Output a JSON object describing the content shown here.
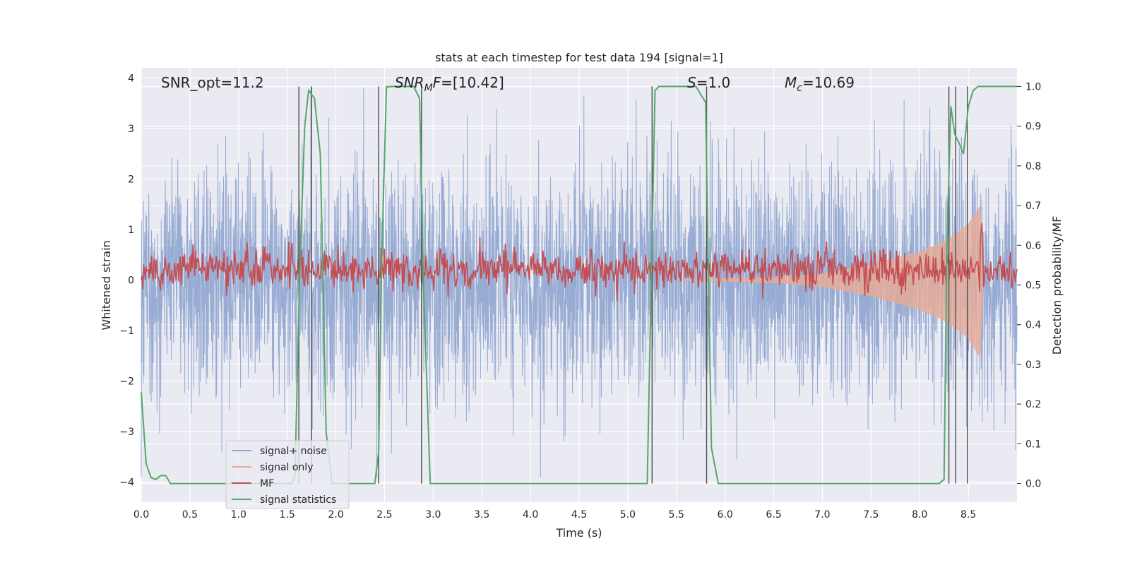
{
  "chart_data": {
    "type": "line",
    "title": "stats at each timestep for test data 194 [signal=1]",
    "xlabel": "Time (s)",
    "ylabel": "Whitened strain",
    "y2label": "Detection probability/MF",
    "xlim": [
      0.0,
      9.0
    ],
    "ylim": [
      -4.4,
      4.2
    ],
    "y2lim": [
      -0.047,
      1.047
    ],
    "x_ticks": [
      "0.0",
      "0.5",
      "1.0",
      "1.5",
      "2.0",
      "2.5",
      "3.0",
      "3.5",
      "4.0",
      "4.5",
      "5.0",
      "5.5",
      "6.0",
      "6.5",
      "7.0",
      "7.5",
      "8.0",
      "8.5"
    ],
    "y_ticks": [
      "−4",
      "−3",
      "−2",
      "−1",
      "0",
      "1",
      "2",
      "3",
      "4"
    ],
    "y2_ticks": [
      "0.0",
      "0.1",
      "0.2",
      "0.3",
      "0.4",
      "0.5",
      "0.6",
      "0.7",
      "0.8",
      "0.9",
      "1.0"
    ],
    "grid": true,
    "legend_position": "lower-left",
    "annotations": {
      "snr_opt": "SNR_opt=11.2",
      "snr_mf": "SNR",
      "snr_mf_sub": "M",
      "snr_mf_rest": "F=[10.42]",
      "s": "S",
      "s_rest": "=1.0",
      "mc": "M",
      "mc_sub": "c",
      "mc_rest": "=10.69"
    },
    "series": [
      {
        "name": "signal+ noise",
        "color": "#92a8d1",
        "noise_range": [
          -3.9,
          3.8
        ]
      },
      {
        "name": "signal only",
        "color": "#e8ab96",
        "envelope": {
          "x": [
            5.5,
            6.5,
            7.0,
            7.5,
            8.0,
            8.3,
            8.5,
            8.62,
            8.65
          ],
          "amplitude": [
            0.0,
            0.05,
            0.12,
            0.3,
            0.55,
            0.8,
            1.1,
            1.45,
            0.1
          ]
        }
      },
      {
        "name": "MF",
        "color": "#c44e52",
        "baseline": 0.54,
        "jitter": 0.025
      },
      {
        "name": "signal statistics",
        "color": "#55a868",
        "x": [
          0.0,
          0.05,
          0.1,
          0.15,
          0.2,
          0.25,
          0.3,
          0.35,
          0.4,
          1.2,
          1.55,
          1.58,
          1.63,
          1.68,
          1.72,
          1.78,
          1.84,
          1.9,
          1.96,
          2.05,
          2.4,
          2.44,
          2.47,
          2.52,
          2.6,
          2.8,
          2.86,
          2.9,
          2.97,
          3.05,
          3.4,
          5.2,
          5.24,
          5.28,
          5.32,
          5.7,
          5.8,
          5.83,
          5.86,
          5.93,
          6.0,
          8.2,
          8.25,
          8.28,
          8.32,
          8.36,
          8.4,
          8.45,
          8.5,
          8.55,
          8.6,
          8.65,
          8.7,
          9.0
        ],
        "y": [
          0.23,
          0.05,
          0.015,
          0.01,
          0.02,
          0.02,
          0.0,
          0.0,
          0.0,
          0.0,
          0.0,
          0.02,
          0.55,
          0.9,
          0.99,
          0.97,
          0.83,
          0.13,
          0.0,
          0.0,
          0.0,
          0.08,
          0.55,
          0.999,
          1.0,
          1.0,
          0.97,
          0.5,
          0.0,
          0.0,
          0.0,
          0.0,
          0.5,
          0.99,
          1.0,
          1.0,
          0.96,
          0.5,
          0.09,
          0.0,
          0.0,
          0.0,
          0.01,
          0.6,
          0.95,
          0.88,
          0.86,
          0.83,
          0.95,
          0.99,
          1.0,
          1.0,
          1.0,
          1.0
        ]
      }
    ],
    "vertical_lines": [
      1.62,
      1.75,
      2.44,
      2.88,
      5.25,
      5.81,
      8.3,
      8.37,
      8.49
    ]
  }
}
